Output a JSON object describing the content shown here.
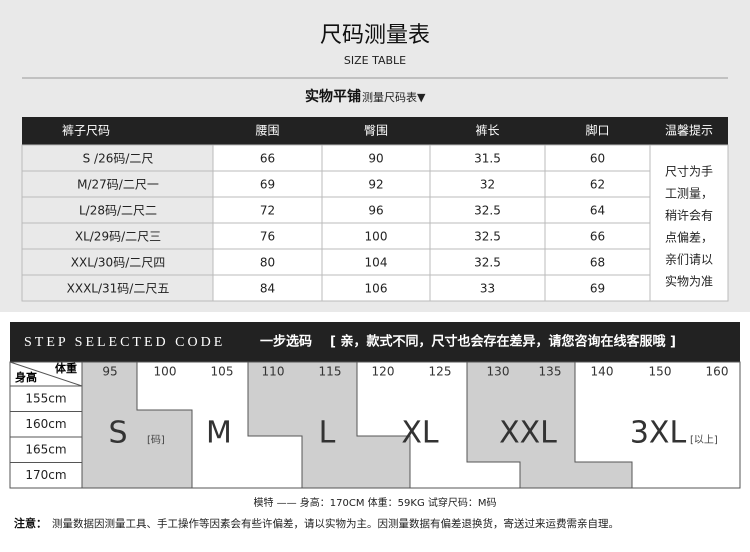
{
  "header": {
    "title": "尺码测量表",
    "subtitle": "SIZE TABLE"
  },
  "table": {
    "caption_main": "实物平铺",
    "caption_sub": "测量尺码表▼",
    "columns": [
      "裤子尺码",
      "腰围",
      "臀围",
      "裤长",
      "脚口",
      "温馨提示"
    ],
    "rows": [
      [
        "S /26码/二尺",
        66,
        90,
        31.5,
        60
      ],
      [
        "M/27码/二尺一",
        69,
        92,
        32,
        62
      ],
      [
        "L/28码/二尺二",
        72,
        96,
        32.5,
        64
      ],
      [
        "XL/29码/二尺三",
        76,
        100,
        32.5,
        66
      ],
      [
        "XXL/30码/二尺四",
        80,
        104,
        32.5,
        68
      ],
      [
        "XXXL/31码/二尺五",
        84,
        106,
        33,
        69
      ]
    ],
    "note_lines": [
      "尺寸为手",
      "工测量，",
      "稍许会有",
      "点偏差，",
      "亲们请以",
      "实物为准"
    ]
  },
  "step": {
    "title": "STEP SELECTED CODE",
    "title_cn": "一步选码",
    "notice": "[ 亲，款式不同，尺寸也会存在差异，请您咨询在线客服哦 ]",
    "weight_label": "体重",
    "height_label": "身高",
    "weights": [
      95,
      100,
      105,
      110,
      115,
      120,
      125,
      130,
      135,
      140,
      150,
      160
    ],
    "heights": [
      "155cm",
      "160cm",
      "165cm",
      "170cm"
    ],
    "sizes": [
      {
        "label": "S",
        "note": "[码]"
      },
      {
        "label": "M"
      },
      {
        "label": "L"
      },
      {
        "label": "XL"
      },
      {
        "label": "XXL"
      },
      {
        "label": "3XL",
        "note": "[以上]"
      }
    ]
  },
  "footer": {
    "model": "模特 —— 身高：170CM   体重：59KG   试穿尺码：M码",
    "notice_label": "注意：",
    "notice": "测量数据因测量工具、手工操作等因素会有些许偏差，请以实物为主。因测量数据有偏差退换货，寄送过来运费需亲自理。"
  }
}
